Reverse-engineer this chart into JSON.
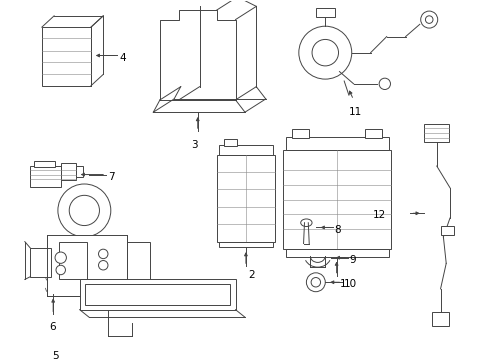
{
  "bg_color": "#ffffff",
  "line_color": "#444444",
  "label_color": "#000000",
  "figsize": [
    4.89,
    3.6
  ],
  "dpi": 100
}
